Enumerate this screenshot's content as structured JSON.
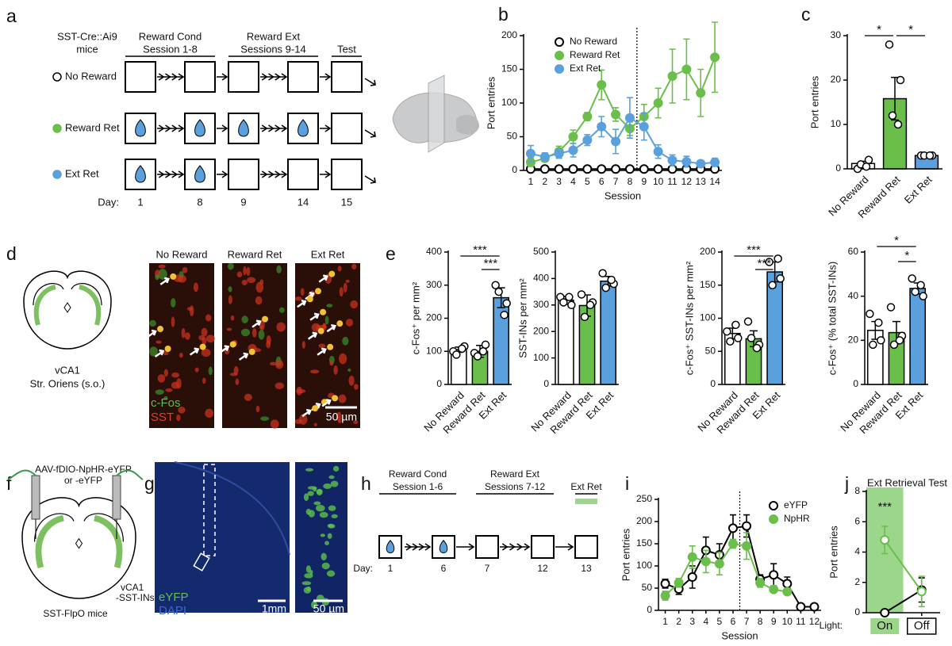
{
  "panel_labels": [
    "a",
    "b",
    "c",
    "d",
    "e",
    "f",
    "g",
    "h",
    "i",
    "j"
  ],
  "panel_a": {
    "mouse_line": [
      "SST-Cre::Ai9",
      "mice"
    ],
    "phases": [
      [
        "Reward Cond",
        "Session 1-8"
      ],
      [
        "Reward Ext",
        "Sessions 9-14"
      ],
      [
        "Test"
      ]
    ],
    "groups": [
      "No Reward",
      "Reward Ret",
      "Ext Ret"
    ],
    "day_label": "Day:",
    "days": [
      "1",
      "8",
      "9",
      "14",
      "15"
    ]
  },
  "panel_d": {
    "region": [
      "vCA1",
      "Str. Oriens (s.o.)"
    ],
    "image_titles": [
      "No Reward",
      "Reward Ret",
      "Ext Ret"
    ],
    "channels": [
      "c-Fos",
      "SST"
    ],
    "scale_bar": "50 µm"
  },
  "panel_f": {
    "virus": [
      "AAV-fDIO-NpHR-eYFP",
      "or -eYFP"
    ],
    "target": [
      "vCA1",
      "-SST-INs"
    ],
    "mouse": "SST-FlpO mice"
  },
  "panel_g": {
    "channels": [
      "eYFP",
      "DAPI"
    ],
    "scale_bars": [
      "1mm",
      "50 µm"
    ]
  },
  "panel_h": {
    "phases": [
      [
        "Reward Cond",
        "Session 1-6"
      ],
      [
        "Reward Ext",
        "Sessions 7-12"
      ],
      [
        "Ext Ret"
      ]
    ],
    "day_label": "Day:",
    "days": [
      "1",
      "6",
      "7",
      "12",
      "13"
    ]
  },
  "chart_data": [
    {
      "type": "line",
      "ylabel": "Port entries",
      "xlabel": "Session",
      "legend": "upper left",
      "x": [
        1,
        2,
        3,
        4,
        5,
        6,
        7,
        8,
        9,
        10,
        11,
        12,
        13,
        14
      ],
      "xlim": [
        0.5,
        14.5
      ],
      "xticks": [
        1,
        2,
        3,
        4,
        5,
        6,
        7,
        8,
        9,
        10,
        11,
        12,
        13,
        14
      ],
      "ylim": [
        0,
        200
      ],
      "yticks": [
        0,
        50,
        100,
        150,
        200
      ],
      "series": [
        {
          "name": "No Reward",
          "color": "#000000",
          "fill": "#ffffff",
          "values": [
            2,
            2,
            2,
            2,
            2,
            2,
            2,
            2,
            2,
            2,
            2,
            2,
            2,
            2
          ],
          "errors": [
            1,
            1,
            1,
            1,
            1,
            1,
            1,
            1,
            1,
            1,
            1,
            1,
            1,
            1
          ]
        },
        {
          "name": "Reward Ret",
          "color": "#6abf4b",
          "fill": "#6abf4b",
          "values": [
            12,
            18,
            28,
            50,
            80,
            127,
            83,
            62,
            80,
            100,
            140,
            150,
            115,
            168
          ],
          "errors": [
            6,
            5,
            8,
            10,
            6,
            22,
            10,
            10,
            18,
            22,
            40,
            45,
            35,
            52
          ]
        },
        {
          "name": "Ext Ret",
          "color": "#5aa0dc",
          "fill": "#5aa0dc",
          "values": [
            25,
            20,
            25,
            30,
            45,
            65,
            43,
            78,
            65,
            28,
            15,
            13,
            10,
            12
          ],
          "errors": [
            12,
            6,
            7,
            10,
            8,
            15,
            18,
            30,
            20,
            10,
            8,
            8,
            5,
            6
          ]
        }
      ]
    },
    {
      "type": "bar",
      "ylabel": "Port entries",
      "categories": [
        "No Reward",
        "Reward Ret",
        "Ext Ret"
      ],
      "colors": [
        "#ffffff",
        "#6abf4b",
        "#5aa0dc"
      ],
      "values": [
        1.2,
        15.8,
        3
      ],
      "errors": [
        0.5,
        4.8,
        0.3
      ],
      "points": [
        [
          0,
          2,
          1,
          0.5
        ],
        [
          28,
          20,
          12,
          10
        ],
        [
          3,
          3,
          3,
          3
        ]
      ],
      "ylim": [
        0,
        30
      ],
      "yticks": [
        0,
        10,
        20,
        30
      ],
      "annotations": [
        "*",
        "*"
      ]
    },
    {
      "type": "bar",
      "ylabel": "c-Fos⁺ per mm²",
      "categories": [
        "No Reward",
        "Reward Ret",
        "Ext Ret"
      ],
      "colors": [
        "#ffffff",
        "#6abf4b",
        "#5aa0dc"
      ],
      "values": [
        105,
        100,
        262
      ],
      "errors": [
        8,
        18,
        30
      ],
      "points": [
        [
          100,
          115,
          90,
          108
        ],
        [
          95,
          120,
          85,
          100
        ],
        [
          300,
          245,
          280,
          210
        ]
      ],
      "ylim": [
        0,
        400
      ],
      "yticks": [
        0,
        100,
        200,
        300,
        400
      ],
      "annotations": [
        "***",
        "***"
      ]
    },
    {
      "type": "bar",
      "ylabel": "SST-INs per mm²",
      "categories": [
        "No Reward",
        "Reward Ret",
        "Ext Ret"
      ],
      "colors": [
        "#ffffff",
        "#6abf4b",
        "#5aa0dc"
      ],
      "values": [
        318,
        298,
        390
      ],
      "errors": [
        15,
        40,
        18
      ],
      "points": [
        [
          330,
          300,
          310,
          330
        ],
        [
          340,
          310,
          255,
          300
        ],
        [
          420,
          380,
          365,
          395
        ]
      ],
      "ylim": [
        0,
        500
      ],
      "yticks": [
        0,
        100,
        200,
        300,
        400,
        500
      ]
    },
    {
      "type": "bar",
      "ylabel": "c-Fos⁺ SST-INs per mm²",
      "categories": [
        "No Reward",
        "Reward Ret",
        "Ext Ret"
      ],
      "colors": [
        "#ffffff",
        "#6abf4b",
        "#5aa0dc"
      ],
      "values": [
        77,
        69,
        170
      ],
      "errors": [
        8,
        12,
        15
      ],
      "points": [
        [
          80,
          70,
          65,
          90
        ],
        [
          95,
          60,
          70,
          55
        ],
        [
          185,
          160,
          150,
          190
        ]
      ],
      "ylim": [
        0,
        200
      ],
      "yticks": [
        0,
        50,
        100,
        150,
        200
      ],
      "annotations": [
        "***",
        "***"
      ]
    },
    {
      "type": "bar",
      "ylabel": "c-Fos⁺ (% total SST-INs)",
      "categories": [
        "No Reward",
        "Reward Ret",
        "Ext Ret"
      ],
      "colors": [
        "#ffffff",
        "#6abf4b",
        "#5aa0dc"
      ],
      "values": [
        24.5,
        23.5,
        43.5
      ],
      "errors": [
        4,
        5,
        2.5
      ],
      "points": [
        [
          32,
          20,
          18,
          28
        ],
        [
          35,
          22,
          18,
          20
        ],
        [
          48,
          40,
          42,
          45
        ]
      ],
      "ylim": [
        0,
        60
      ],
      "yticks": [
        0,
        20,
        40,
        60
      ],
      "annotations": [
        "*",
        "*"
      ]
    },
    {
      "type": "line",
      "ylabel": "Port entries",
      "xlabel": "Session",
      "legend": "upper right",
      "x": [
        1,
        2,
        3,
        4,
        5,
        6,
        7,
        8,
        9,
        10,
        11,
        12
      ],
      "xlim": [
        0.5,
        12.5
      ],
      "xticks": [
        1,
        2,
        3,
        4,
        5,
        6,
        7,
        8,
        9,
        10,
        11,
        12
      ],
      "ylim": [
        0,
        250
      ],
      "yticks": [
        0,
        50,
        100,
        150,
        200,
        250
      ],
      "series": [
        {
          "name": "eYFP",
          "color": "#000000",
          "fill": "#ffffff",
          "values": [
            60,
            48,
            75,
            135,
            125,
            185,
            190,
            70,
            80,
            60,
            8,
            8
          ],
          "errors": [
            10,
            12,
            25,
            30,
            25,
            30,
            25,
            10,
            25,
            15,
            4,
            4
          ]
        },
        {
          "name": "NpHR",
          "color": "#6abf4b",
          "fill": "#6abf4b",
          "values": [
            33,
            62,
            120,
            110,
            105,
            150,
            145,
            62,
            47,
            42,
            null,
            null
          ],
          "errors": [
            10,
            10,
            25,
            25,
            25,
            10,
            30,
            10,
            5,
            5,
            null,
            null
          ]
        }
      ]
    },
    {
      "type": "line",
      "title": "Ext Retrieval Test",
      "ylabel": "Port entries",
      "xlabel": "Light:",
      "categories": [
        "On",
        "Off"
      ],
      "ylim": [
        0,
        8
      ],
      "yticks": [
        0,
        2,
        4,
        6,
        8
      ],
      "annotations": [
        "***"
      ],
      "series": [
        {
          "name": "eYFP",
          "color": "#000000",
          "fill": "#ffffff",
          "values": [
            0,
            1.5
          ],
          "errors": [
            0,
            0.8
          ]
        },
        {
          "name": "NpHR",
          "color": "#6abf4b",
          "fill": "#ffffff",
          "values": [
            4.8,
            1.4
          ],
          "errors": [
            0.9,
            1.0
          ]
        }
      ]
    }
  ]
}
